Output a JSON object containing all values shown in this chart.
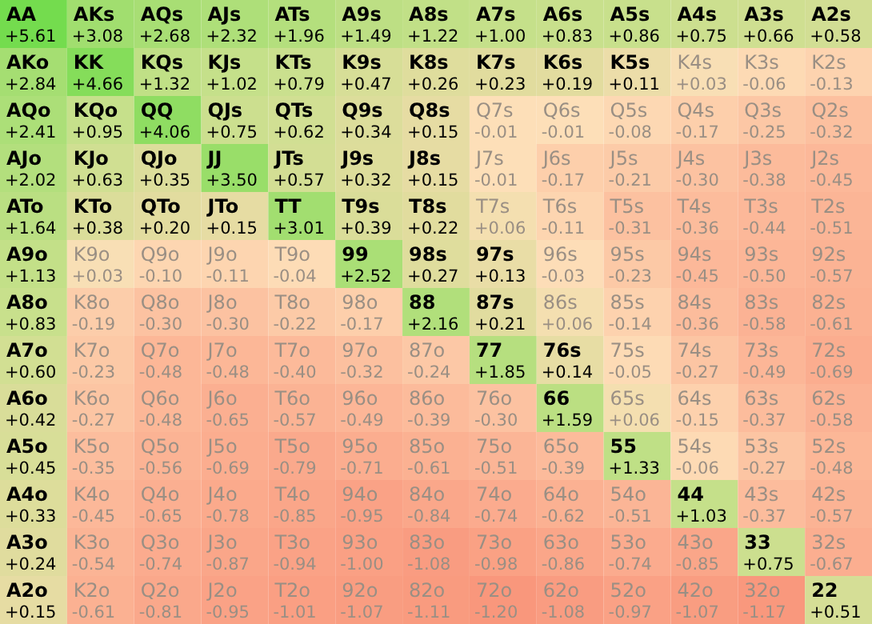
{
  "chart_data": {
    "type": "heatmap",
    "categories": [
      null,
      null,
      null,
      null,
      null,
      null,
      null,
      null,
      null,
      null,
      null,
      null,
      null
    ],
    "y_categories": [
      null,
      null,
      null,
      null,
      null,
      null,
      null,
      null,
      null,
      null,
      null,
      null,
      null
    ],
    "cells": [
      [
        5.61,
        3.08,
        2.68,
        2.32,
        1.96,
        1.49,
        1.22,
        1.0,
        0.83,
        0.86,
        0.75,
        0.66,
        0.58
      ],
      [
        2.84,
        4.66,
        1.32,
        1.02,
        0.79,
        0.47,
        0.26,
        0.23,
        0.19,
        0.11,
        0.03,
        -0.06,
        -0.13
      ],
      [
        2.41,
        0.95,
        4.06,
        0.75,
        0.62,
        0.34,
        0.15,
        -0.01,
        -0.01,
        -0.08,
        -0.17,
        -0.25,
        -0.32
      ],
      [
        2.02,
        0.63,
        0.35,
        3.5,
        0.57,
        0.32,
        0.15,
        -0.01,
        -0.17,
        -0.21,
        -0.3,
        -0.38,
        -0.45
      ],
      [
        1.64,
        0.38,
        0.2,
        0.15,
        3.01,
        0.39,
        0.22,
        0.06,
        -0.11,
        -0.31,
        -0.36,
        -0.44,
        -0.51
      ],
      [
        1.13,
        0.03,
        -0.1,
        -0.11,
        -0.04,
        2.52,
        0.27,
        0.13,
        -0.03,
        -0.23,
        -0.45,
        -0.5,
        -0.57
      ],
      [
        0.83,
        -0.19,
        -0.3,
        -0.3,
        -0.22,
        -0.17,
        2.16,
        0.21,
        0.06,
        -0.14,
        -0.36,
        -0.58,
        -0.61
      ],
      [
        0.6,
        -0.23,
        -0.48,
        -0.48,
        -0.4,
        -0.32,
        -0.24,
        1.85,
        0.14,
        -0.05,
        -0.27,
        -0.49,
        -0.69
      ],
      [
        0.42,
        -0.27,
        -0.48,
        -0.65,
        -0.57,
        -0.49,
        -0.39,
        -0.3,
        1.59,
        0.06,
        -0.15,
        -0.37,
        -0.58
      ],
      [
        0.45,
        -0.35,
        -0.56,
        -0.69,
        -0.79,
        -0.71,
        -0.61,
        -0.51,
        -0.39,
        1.33,
        -0.06,
        -0.27,
        -0.48
      ],
      [
        0.33,
        -0.45,
        -0.65,
        -0.78,
        -0.85,
        -0.95,
        -0.84,
        -0.74,
        -0.62,
        -0.51,
        1.03,
        -0.37,
        -0.57
      ],
      [
        0.24,
        -0.54,
        -0.74,
        -0.87,
        -0.94,
        -1.0,
        -1.08,
        -0.98,
        -0.86,
        -0.74,
        -0.85,
        0.75,
        -0.67
      ],
      [
        0.15,
        -0.61,
        -0.81,
        -0.95,
        -1.01,
        -1.07,
        -1.11,
        -1.2,
        -1.08,
        -0.97,
        -1.07,
        -1.17,
        0.51
      ]
    ],
    "cell_labels": [
      [
        "+5.61",
        "+3.08",
        "+2.68",
        "+2.32",
        "+1.96",
        "+1.49",
        "+1.22",
        "+1.00",
        "+0.83",
        "+0.86",
        "+0.75",
        "+0.66",
        "+0.58"
      ],
      [
        "+2.84",
        "+4.66",
        "+1.32",
        "+1.02",
        "+0.79",
        "+0.47",
        "+0.26",
        "+0.23",
        "+0.19",
        "+0.11",
        "+0.03",
        "-0.06",
        "-0.13"
      ],
      [
        "+2.41",
        "+0.95",
        "+4.06",
        "+0.75",
        "+0.62",
        "+0.34",
        "+0.15",
        "-0.01",
        "-0.01",
        "-0.08",
        "-0.17",
        "-0.25",
        "-0.32"
      ],
      [
        "+2.02",
        "+0.63",
        "+0.35",
        "+3.50",
        "+0.57",
        "+0.32",
        "+0.15",
        "-0.01",
        "-0.17",
        "-0.21",
        "-0.30",
        "-0.38",
        "-0.45"
      ],
      [
        "+1.64",
        "+0.38",
        "+0.20",
        "+0.15",
        "+3.01",
        "+0.39",
        "+0.22",
        "+0.06",
        "-0.11",
        "-0.31",
        "-0.36",
        "-0.44",
        "-0.51"
      ],
      [
        "+1.13",
        "+0.03",
        "-0.10",
        "-0.11",
        "-0.04",
        "+2.52",
        "+0.27",
        "+0.13",
        "-0.03",
        "-0.23",
        "-0.45",
        "-0.50",
        "-0.57"
      ],
      [
        "+0.83",
        "-0.19",
        "-0.30",
        "-0.30",
        "-0.22",
        "-0.17",
        "+2.16",
        "+0.21",
        "+0.06",
        "-0.14",
        "-0.36",
        "-0.58",
        "-0.61"
      ],
      [
        "+0.60",
        "-0.23",
        "-0.48",
        "-0.48",
        "-0.40",
        "-0.32",
        "-0.24",
        "+1.85",
        "+0.14",
        "-0.05",
        "-0.27",
        "-0.49",
        "-0.69"
      ],
      [
        "+0.42",
        "-0.27",
        "-0.48",
        "-0.65",
        "-0.57",
        "-0.49",
        "-0.39",
        "-0.30",
        "+1.59",
        "+0.06",
        "-0.15",
        "-0.37",
        "-0.58"
      ],
      [
        "+0.45",
        "-0.35",
        "-0.56",
        "-0.69",
        "-0.79",
        "-0.71",
        "-0.61",
        "-0.51",
        "-0.39",
        "+1.33",
        "-0.06",
        "-0.27",
        "-0.48"
      ],
      [
        "+0.33",
        "-0.45",
        "-0.65",
        "-0.78",
        "-0.85",
        "-0.95",
        "-0.84",
        "-0.74",
        "-0.62",
        "-0.51",
        "+1.03",
        "-0.37",
        "-0.57"
      ],
      [
        "+0.24",
        "-0.54",
        "-0.74",
        "-0.87",
        "-0.94",
        "-1.00",
        "-1.08",
        "-0.98",
        "-0.86",
        "-0.74",
        "-0.85",
        "+0.75",
        "-0.67"
      ],
      [
        "+0.15",
        "-0.61",
        "-0.81",
        "-0.95",
        "-1.01",
        "-1.07",
        "-1.11",
        "-1.20",
        "-1.08",
        "-0.97",
        "-1.07",
        "-1.17",
        "+0.51"
      ]
    ],
    "annotations": [
      "AA",
      "AKs",
      "AQs",
      "AJs",
      "ATs",
      "A9s",
      "A8s",
      "A7s",
      "A6s",
      "A5s",
      "A4s",
      "A3s",
      "A2s",
      "AKo",
      "KK",
      "KQs",
      "KJs",
      "KTs",
      "K9s",
      "K8s",
      "K7s",
      "K6s",
      "K5s",
      "K4s",
      "K3s",
      "K2s",
      "AQo",
      "KQo",
      "QQ",
      "QJs",
      "QTs",
      "Q9s",
      "Q8s",
      "Q7s",
      "Q6s",
      "Q5s",
      "Q4s",
      "Q3s",
      "Q2s",
      "AJo",
      "KJo",
      "QJo",
      "JJ",
      "JTs",
      "J9s",
      "J8s",
      "J7s",
      "J6s",
      "J5s",
      "J4s",
      "J3s",
      "J2s",
      "ATo",
      "KTo",
      "QTo",
      "JTo",
      "TT",
      "T9s",
      "T8s",
      "T7s",
      "T6s",
      "T5s",
      "T4s",
      "T3s",
      "T2s",
      "A9o",
      "K9o",
      "Q9o",
      "J9o",
      "T9o",
      "99",
      "98s",
      "97s",
      "96s",
      "95s",
      "94s",
      "93s",
      "92s",
      "A8o",
      "K8o",
      "Q8o",
      "J8o",
      "T8o",
      "98o",
      "88",
      "87s",
      "86s",
      "85s",
      "84s",
      "83s",
      "82s",
      "A7o",
      "K7o",
      "Q7o",
      "J7o",
      "T7o",
      "97o",
      "87o",
      "77",
      "76s",
      "75s",
      "74s",
      "73s",
      "72s",
      "A6o",
      "K6o",
      "Q6o",
      "J6o",
      "T6o",
      "96o",
      "86o",
      "76o",
      "66",
      "65s",
      "64s",
      "63s",
      "62s",
      "A5o",
      "K5o",
      "Q5o",
      "J5o",
      "T5o",
      "95o",
      "85o",
      "75o",
      "65o",
      "55",
      "54s",
      "53s",
      "52s",
      "A4o",
      "K4o",
      "Q4o",
      "J4o",
      "T4o",
      "94o",
      "84o",
      "74o",
      "64o",
      "54o",
      "44",
      "43s",
      "42s",
      "A3o",
      "K3o",
      "Q3o",
      "J3o",
      "T3o",
      "93o",
      "83o",
      "73o",
      "63o",
      "53o",
      "43o",
      "33",
      "32s",
      "A2o",
      "K2o",
      "Q2o",
      "J2o",
      "T2o",
      "92o",
      "82o",
      "72o",
      "62o",
      "52o",
      "42o",
      "32o",
      "22"
    ]
  }
}
